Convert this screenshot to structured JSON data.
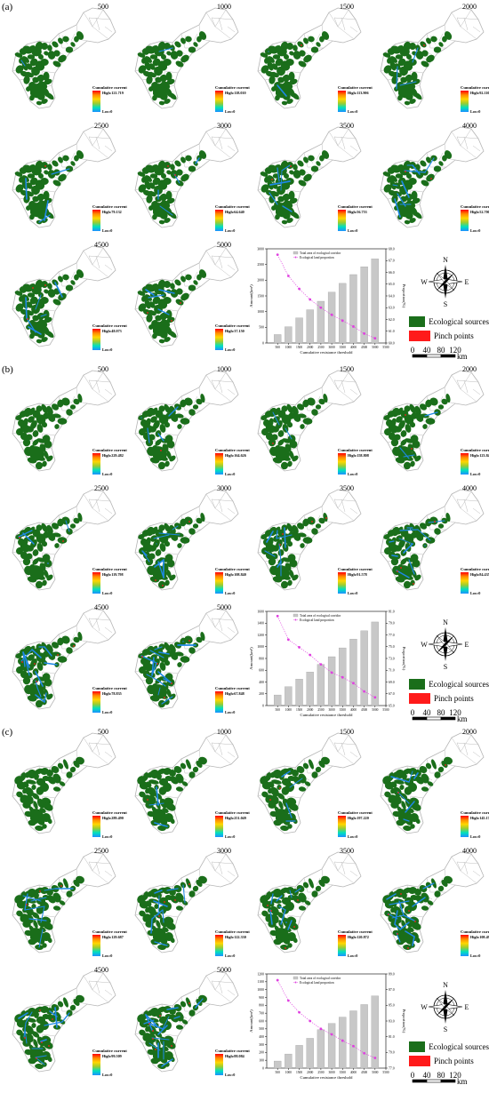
{
  "panels": [
    {
      "label": "(a)",
      "maps": [
        {
          "threshold": "500",
          "legend_title": "Cumulative current",
          "high": "High:121.719",
          "low": "Low:0"
        },
        {
          "threshold": "1000",
          "legend_title": "Cumulative current",
          "high": "High:118.010",
          "low": "Low:0"
        },
        {
          "threshold": "1500",
          "legend_title": "Cumulative current",
          "high": "High:113.906",
          "low": "Low:0"
        },
        {
          "threshold": "2000",
          "legend_title": "Cumulative current",
          "high": "High:92.110",
          "low": "Low:0"
        },
        {
          "threshold": "2500",
          "legend_title": "Cumulative current",
          "high": "High:79.132",
          "low": "Low:0"
        },
        {
          "threshold": "3000",
          "legend_title": "Cumulative current",
          "high": "High:64.640",
          "low": "Low:0"
        },
        {
          "threshold": "3500",
          "legend_title": "Cumulative current",
          "high": "High:56.753",
          "low": "Low:0"
        },
        {
          "threshold": "4000",
          "legend_title": "Cumulative current",
          "high": "High:52.700",
          "low": "Low:0"
        },
        {
          "threshold": "4500",
          "legend_title": "Cumulative current",
          "high": "High:48.073",
          "low": "Low:0"
        },
        {
          "threshold": "5000",
          "legend_title": "Cumulative current",
          "high": "High:37.150",
          "low": "Low:0"
        }
      ]
    },
    {
      "label": "(b)",
      "maps": [
        {
          "threshold": "500",
          "legend_title": "Cumulative current",
          "high": "High:229.482",
          "low": "Low:0"
        },
        {
          "threshold": "1000",
          "legend_title": "Cumulative current",
          "high": "High:164.626",
          "low": "Low:0"
        },
        {
          "threshold": "1500",
          "legend_title": "Cumulative current",
          "high": "High:158.808",
          "low": "Low:0"
        },
        {
          "threshold": "2000",
          "legend_title": "Cumulative current",
          "high": "High:123.848",
          "low": "Low:0"
        },
        {
          "threshold": "2500",
          "legend_title": "Cumulative current",
          "high": "High:119.798",
          "low": "Low:0"
        },
        {
          "threshold": "3000",
          "legend_title": "Cumulative current",
          "high": "High:108.840",
          "low": "Low:0"
        },
        {
          "threshold": "3500",
          "legend_title": "Cumulative current",
          "high": "High:91.578",
          "low": "Low:0"
        },
        {
          "threshold": "4000",
          "legend_title": "Cumulative current",
          "high": "High:84.435",
          "low": "Low:0"
        },
        {
          "threshold": "4500",
          "legend_title": "Cumulative current",
          "high": "High:78.835",
          "low": "Low:0"
        },
        {
          "threshold": "5000",
          "legend_title": "Cumulative current",
          "high": "High:67.848",
          "low": "Low:0"
        }
      ]
    },
    {
      "label": "(c)",
      "maps": [
        {
          "threshold": "500",
          "legend_title": "Cumulative current",
          "high": "High:289.490",
          "low": "Low:0"
        },
        {
          "threshold": "1000",
          "legend_title": "Cumulative current",
          "high": "High:251.049",
          "low": "Low:0"
        },
        {
          "threshold": "1500",
          "legend_title": "Cumulative current",
          "high": "High:197.220",
          "low": "Low:0"
        },
        {
          "threshold": "2000",
          "legend_title": "Cumulative current",
          "high": "High:145.174",
          "low": "Low:0"
        },
        {
          "threshold": "2500",
          "legend_title": "Cumulative current",
          "high": "High:129.687",
          "low": "Low:0"
        },
        {
          "threshold": "3000",
          "legend_title": "Cumulative current",
          "high": "High:122.330",
          "low": "Low:0"
        },
        {
          "threshold": "3500",
          "legend_title": "Cumulative current",
          "high": "High:120.872",
          "low": "Low:0"
        },
        {
          "threshold": "4000",
          "legend_title": "Cumulative current",
          "high": "High:108.499",
          "low": "Low:0"
        },
        {
          "threshold": "4500",
          "legend_title": "Cumulative current",
          "high": "High:99.509",
          "low": "Low:0"
        },
        {
          "threshold": "5000",
          "legend_title": "Cumulative current",
          "high": "High:88.084",
          "low": "Low:0"
        }
      ]
    }
  ],
  "legend": {
    "ecological_sources": "Ecological sources",
    "pinch_points": "Pinch points"
  },
  "compass": {
    "n": "N",
    "s": "S",
    "e": "E",
    "w": "W"
  },
  "scalebar": {
    "ticks": [
      "0",
      "40",
      "80",
      "120"
    ],
    "unit": "km"
  },
  "colors": {
    "source": "#1a6e1a",
    "pinch": "#ff1a1a",
    "corridor": "#1e88e5",
    "boundary": "#b5b5b5",
    "bar": "#c8c8c8",
    "line": "#e040e0"
  },
  "chart_data": [
    {
      "type": "bar+line",
      "x": [
        500,
        1000,
        1500,
        2000,
        2500,
        3000,
        3500,
        4000,
        4500,
        5000
      ],
      "series": [
        {
          "name": "Total area of ecological corridor",
          "axis": "left",
          "values": [
            270,
            520,
            800,
            1060,
            1330,
            1620,
            1900,
            2180,
            2430,
            2680
          ]
        },
        {
          "name": "Ecological land proportion",
          "axis": "right",
          "values": [
            67.5,
            65.7,
            64.6,
            63.7,
            63.0,
            62.4,
            61.9,
            61.4,
            60.8,
            60.4
          ]
        }
      ],
      "xlabel": "Cumulative resistance threshold",
      "ylabel_left": "Amount(km²)",
      "ylabel_right": "Proportion(%)",
      "ylim_left": [
        0,
        3000
      ],
      "ylim_right": [
        60.0,
        68.0
      ],
      "yticks_left": [
        "0",
        "500",
        "1000",
        "1500",
        "2000",
        "2500",
        "3000"
      ],
      "yticks_right": [
        "60.0",
        "61.0",
        "62.0",
        "63.0",
        "64.0",
        "65.0",
        "66.0",
        "67.0",
        "68.0"
      ],
      "xticks": [
        "500",
        "1000",
        "1500",
        "2000",
        "2500",
        "3000",
        "3500",
        "4000",
        "4500",
        "5000",
        "5500"
      ]
    },
    {
      "type": "bar+line",
      "x": [
        500,
        1000,
        1500,
        2000,
        2500,
        3000,
        3500,
        4000,
        4500,
        5000
      ],
      "series": [
        {
          "name": "Total area of ecological corridor",
          "axis": "left",
          "values": [
            180,
            320,
            450,
            570,
            700,
            830,
            980,
            1130,
            1270,
            1420
          ]
        },
        {
          "name": "Ecological land proportion",
          "axis": "right",
          "values": [
            80.2,
            76.2,
            74.9,
            73.6,
            72.0,
            70.6,
            69.8,
            68.8,
            67.4,
            66.4
          ]
        }
      ],
      "xlabel": "Cumulative resistance threshold",
      "ylabel_left": "Amount(km²)",
      "ylabel_right": "Proportion(%)",
      "ylim_left": [
        0,
        1600
      ],
      "ylim_right": [
        65.0,
        81.0
      ],
      "yticks_left": [
        "0",
        "200",
        "400",
        "600",
        "800",
        "1000",
        "1200",
        "1400",
        "1600"
      ],
      "yticks_right": [
        "65.0",
        "67.0",
        "69.0",
        "71.0",
        "73.0",
        "75.0",
        "77.0",
        "79.0",
        "81.0"
      ],
      "xticks": [
        "500",
        "1000",
        "1500",
        "2000",
        "2500",
        "3000",
        "3500",
        "4000",
        "4500",
        "5000",
        "5500"
      ]
    },
    {
      "type": "bar+line",
      "x": [
        500,
        1000,
        1500,
        2000,
        2500,
        3000,
        3500,
        4000,
        4500,
        5000
      ],
      "series": [
        {
          "name": "Total area of ecological corridor",
          "axis": "left",
          "values": [
            90,
            180,
            290,
            380,
            490,
            570,
            650,
            730,
            810,
            920
          ]
        },
        {
          "name": "Ecological land proportion",
          "axis": "right",
          "values": [
            88.2,
            85.6,
            84.1,
            83.0,
            82.0,
            81.3,
            80.5,
            79.8,
            78.9,
            78.3
          ]
        }
      ],
      "xlabel": "Cumulative resistance threshold",
      "ylabel_left": "Amount(km²)",
      "ylabel_right": "Proportion(%)",
      "ylim_left": [
        0,
        1200
      ],
      "ylim_right": [
        77.0,
        89.0
      ],
      "yticks_left": [
        "0",
        "100",
        "200",
        "300",
        "400",
        "500",
        "600",
        "700",
        "800",
        "900",
        "1000",
        "1100",
        "1200"
      ],
      "yticks_right": [
        "77.0",
        "79.0",
        "81.0",
        "83.0",
        "85.0",
        "87.0",
        "89.0"
      ],
      "xticks": [
        "500",
        "1000",
        "1500",
        "2000",
        "2500",
        "3000",
        "3500",
        "4000",
        "4500",
        "5000",
        "5500"
      ]
    }
  ]
}
